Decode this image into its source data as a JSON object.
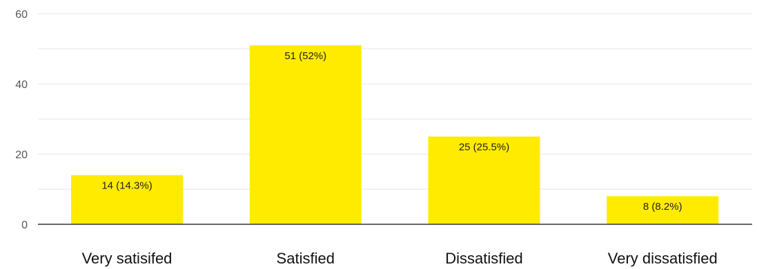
{
  "chart_data": {
    "type": "bar",
    "categories": [
      "Very satisifed",
      "Satisfied",
      "Dissatisfied",
      "Very dissatisfied"
    ],
    "values": [
      14,
      51,
      25,
      8
    ],
    "data_labels": [
      "14 (14.3%)",
      "51 (52%)",
      "25 (25.5%)",
      "8 (8.2%)"
    ],
    "ylim": [
      0,
      60
    ],
    "yticks": [
      0,
      20,
      40,
      60
    ],
    "ytick_labels": [
      "0",
      "20",
      "40",
      "60"
    ],
    "minor_gridlines": [
      10,
      30,
      50
    ],
    "bar_color": "#FFEB00",
    "grid": true,
    "legend": "none"
  }
}
